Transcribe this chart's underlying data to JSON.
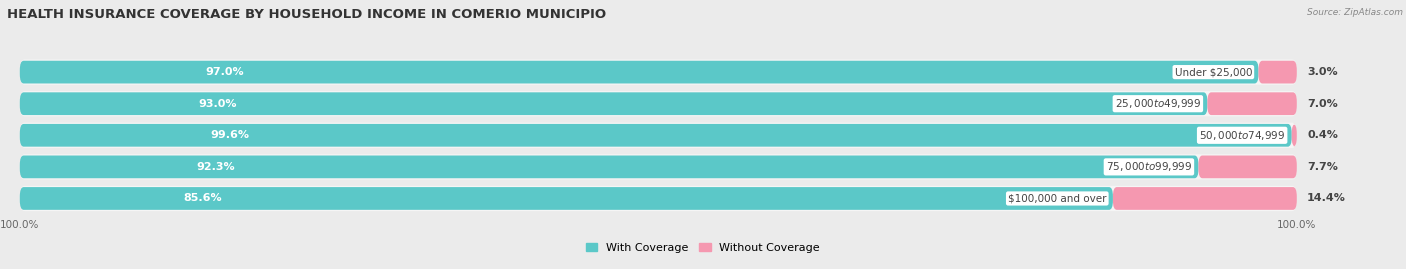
{
  "title": "HEALTH INSURANCE COVERAGE BY HOUSEHOLD INCOME IN COMERIO MUNICIPIO",
  "source": "Source: ZipAtlas.com",
  "categories": [
    "Under $25,000",
    "$25,000 to $49,999",
    "$50,000 to $74,999",
    "$75,000 to $99,999",
    "$100,000 and over"
  ],
  "with_coverage": [
    97.0,
    93.0,
    99.6,
    92.3,
    85.6
  ],
  "without_coverage": [
    3.0,
    7.0,
    0.4,
    7.7,
    14.4
  ],
  "color_with": "#5BC8C8",
  "color_without": "#F598B0",
  "bg_color": "#ebebeb",
  "bar_bg_color": "#f5f5f5",
  "title_fontsize": 9.5,
  "label_fontsize": 8,
  "cat_fontsize": 7.5,
  "tick_fontsize": 7.5,
  "bottom_labels": [
    "100.0%",
    "100.0%"
  ],
  "legend_with": "With Coverage",
  "legend_without": "Without Coverage"
}
